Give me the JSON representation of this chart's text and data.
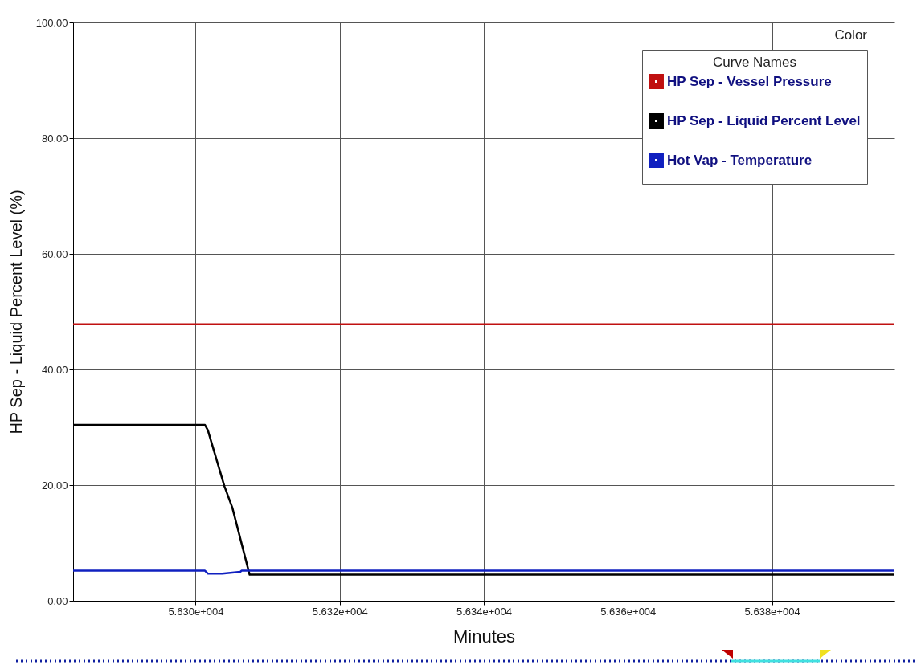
{
  "chart_data": {
    "type": "line",
    "xlabel": "Minutes",
    "ylabel": "HP Sep - Liquid Percent Level (%)",
    "legend_title": "Curve Names",
    "annotations": [
      "Color"
    ],
    "xlim": [
      56283,
      56397
    ],
    "ylim": [
      0,
      100
    ],
    "xticks": [
      {
        "value": 56300,
        "label": "5.630e+004"
      },
      {
        "value": 56320,
        "label": "5.632e+004"
      },
      {
        "value": 56340,
        "label": "5.634e+004"
      },
      {
        "value": 56360,
        "label": "5.636e+004"
      },
      {
        "value": 56380,
        "label": "5.638e+004"
      }
    ],
    "yticks": [
      {
        "value": 0,
        "label": "0.00"
      },
      {
        "value": 20,
        "label": "20.00"
      },
      {
        "value": 40,
        "label": "40.00"
      },
      {
        "value": 60,
        "label": "60.00"
      },
      {
        "value": 80,
        "label": "80.00"
      },
      {
        "value": 100,
        "label": "100.00"
      }
    ],
    "grid": true,
    "legend": "top right",
    "marker": "none",
    "line_style": "solid",
    "series": [
      {
        "name": "HP Sep - Vessel Pressure",
        "color": "#c01010",
        "x": [
          56283,
          56397
        ],
        "values": [
          47.8,
          47.8
        ]
      },
      {
        "name": "HP Sep - Liquid Percent Level",
        "color": "#000000",
        "x": [
          56283,
          56301.3,
          56301.7,
          56304.0,
          56305.1,
          56307.5,
          56397
        ],
        "values": [
          30.4,
          30.4,
          29.5,
          19.8,
          16.1,
          4.5,
          4.5
        ]
      },
      {
        "name": "Hot Vap - Temperature",
        "color": "#1020c0",
        "x": [
          56283,
          56301.3,
          56301.7,
          56303.7,
          56306.2,
          56306.4,
          56397
        ],
        "values": [
          5.2,
          5.2,
          4.7,
          4.7,
          5.0,
          5.2,
          5.2
        ]
      }
    ]
  }
}
